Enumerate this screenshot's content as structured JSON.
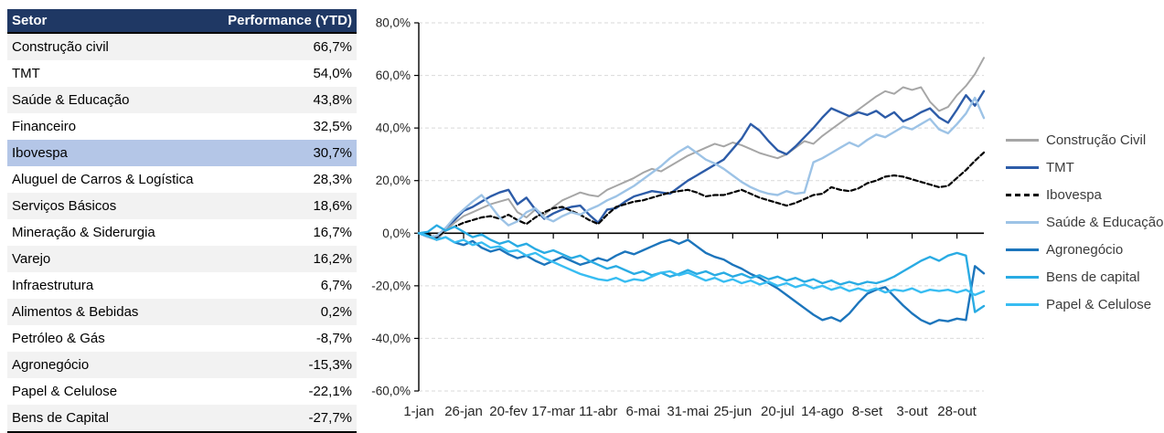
{
  "table": {
    "header_bg": "#1F3864",
    "stripe_color": "#F2F2F2",
    "highlight_color": "#B4C6E7",
    "headers": {
      "sector": "Setor",
      "performance": "Performance (YTD)"
    },
    "rows": [
      {
        "sector": "Construção civil",
        "value": "66,7%",
        "highlight": false
      },
      {
        "sector": "TMT",
        "value": "54,0%",
        "highlight": false
      },
      {
        "sector": "Saúde & Educação",
        "value": "43,8%",
        "highlight": false
      },
      {
        "sector": "Financeiro",
        "value": "32,5%",
        "highlight": false
      },
      {
        "sector": "Ibovespa",
        "value": "30,7%",
        "highlight": true
      },
      {
        "sector": "Aluguel de Carros & Logística",
        "value": "28,3%",
        "highlight": false
      },
      {
        "sector": "Serviços Básicos",
        "value": "18,6%",
        "highlight": false
      },
      {
        "sector": "Mineração & Siderurgia",
        "value": "16,7%",
        "highlight": false
      },
      {
        "sector": "Varejo",
        "value": "16,2%",
        "highlight": false
      },
      {
        "sector": "Infraestrutura",
        "value": "6,7%",
        "highlight": false
      },
      {
        "sector": "Alimentos & Bebidas",
        "value": "0,2%",
        "highlight": false
      },
      {
        "sector": "Petróleo & Gás",
        "value": "-8,7%",
        "highlight": false
      },
      {
        "sector": "Agronegócio",
        "value": "-15,3%",
        "highlight": false
      },
      {
        "sector": "Papel & Celulose",
        "value": "-22,1%",
        "highlight": false
      },
      {
        "sector": "Bens de Capital",
        "value": "-27,7%",
        "highlight": false
      }
    ]
  },
  "chart_data": {
    "type": "line",
    "title": "",
    "xlabel": "",
    "ylabel": "",
    "grid": "horizontal-dashed",
    "grid_color": "#D9D9D9",
    "axis_color": "#000000",
    "label_color": "#262626",
    "legend_position": "right",
    "ylim": [
      -60,
      80
    ],
    "y_ticks": [
      80,
      60,
      40,
      20,
      0,
      -20,
      -40,
      -60
    ],
    "y_tick_labels": [
      "80,0%",
      "60,0%",
      "40,0%",
      "20,0%",
      "0,0%",
      "-20,0%",
      "-40,0%",
      "-60,0%"
    ],
    "x_total_days": 315,
    "x_days_step": 5,
    "x_tick_days": [
      0,
      25,
      50,
      75,
      100,
      125,
      150,
      175,
      200,
      225,
      250,
      275,
      300
    ],
    "x_tick_labels": [
      "1-jan",
      "26-jan",
      "20-fev",
      "17-mar",
      "11-abr",
      "6-mai",
      "31-mai",
      "25-jun",
      "20-jul",
      "14-ago",
      "8-set",
      "3-out",
      "28-out"
    ],
    "series": [
      {
        "name": "Construção Civil",
        "color": "#A6A6A6",
        "dash": null,
        "width": 2,
        "values": [
          0,
          -1.5,
          -2.5,
          1,
          4,
          6.5,
          8,
          9.5,
          11,
          12,
          13,
          8,
          6,
          9,
          7,
          10,
          12.5,
          14,
          15.5,
          14.5,
          14,
          16.5,
          18,
          19.5,
          21,
          23,
          24.5,
          23.5,
          25.5,
          27.5,
          29.5,
          31,
          32.5,
          34,
          33,
          34.5,
          33.5,
          32,
          30.5,
          29.5,
          28.5,
          30,
          32.5,
          35,
          34,
          37,
          39.5,
          42,
          44.5,
          47,
          49.5,
          52,
          54,
          53,
          55.5,
          54.5,
          55.5,
          50,
          46.5,
          48,
          52.5,
          56,
          60.5,
          66.7
        ]
      },
      {
        "name": "TMT",
        "color": "#2D5CA8",
        "dash": null,
        "width": 2.4,
        "values": [
          0,
          -1,
          -2,
          2,
          5,
          8.5,
          10,
          12,
          14,
          15.5,
          16.5,
          11,
          13.5,
          9,
          5.5,
          7.5,
          9,
          10,
          10.5,
          7,
          4,
          9,
          9.5,
          12,
          14,
          15,
          16,
          15.5,
          15,
          17.5,
          20,
          22,
          24,
          26,
          28,
          32,
          36,
          41.5,
          39,
          35,
          31.5,
          30,
          33,
          36.5,
          40,
          44,
          47.5,
          46,
          44.5,
          46,
          45,
          46.5,
          44,
          46,
          42.5,
          44,
          46,
          47.5,
          44,
          42,
          47,
          52.5,
          48.5,
          54
        ]
      },
      {
        "name": "Ibovespa",
        "color": "#000000",
        "dash": "5 3",
        "width": 2.2,
        "values": [
          0,
          -0.5,
          -1.5,
          1,
          2.5,
          4,
          5,
          6,
          6.5,
          5.5,
          7,
          5,
          3.5,
          6,
          8,
          9.5,
          10,
          8.5,
          7,
          5,
          3.5,
          7,
          10,
          11,
          12,
          12.5,
          13.5,
          14.5,
          15.5,
          16,
          16.5,
          15.5,
          14,
          14.5,
          14.5,
          15.5,
          16.5,
          15,
          13.5,
          12.5,
          11.5,
          10.5,
          11.5,
          13,
          14.5,
          15,
          17.5,
          16.5,
          16,
          17,
          19,
          20,
          21.5,
          22,
          21.5,
          20.5,
          19.5,
          18.5,
          17.5,
          18,
          21,
          24,
          27.5,
          30.7
        ]
      },
      {
        "name": "Saúde & Educação",
        "color": "#9DC3E6",
        "dash": null,
        "width": 2.4,
        "values": [
          0,
          -1.5,
          -1,
          2,
          6,
          9,
          12,
          14.5,
          10.5,
          6,
          3,
          4.5,
          8,
          9.5,
          6,
          4.5,
          6.5,
          8,
          7,
          9,
          10.5,
          12.5,
          14,
          16,
          18,
          20.5,
          23,
          25.5,
          28.5,
          31,
          33,
          30.5,
          28,
          26.5,
          24.5,
          22,
          19.5,
          17.5,
          16,
          15,
          14.5,
          16,
          15,
          15.5,
          27,
          28.5,
          30.5,
          32.5,
          34.5,
          33,
          35.5,
          37.5,
          36.5,
          38.5,
          40.5,
          39.5,
          41.5,
          43.5,
          39.5,
          38,
          41.5,
          45.5,
          51.5,
          43.8
        ]
      },
      {
        "name": "Agronegócio",
        "color": "#1C75BC",
        "dash": null,
        "width": 2.4,
        "values": [
          0,
          -1,
          -2.5,
          -1.5,
          -3.5,
          -4.5,
          -3,
          -5.5,
          -7,
          -6,
          -8,
          -9.5,
          -8.5,
          -10.5,
          -12,
          -10.5,
          -9,
          -10.5,
          -12,
          -11,
          -9.5,
          -10.5,
          -8.5,
          -7,
          -8,
          -6.5,
          -5,
          -3.5,
          -2.5,
          -4,
          -2.5,
          -5,
          -7.5,
          -9,
          -10,
          -12,
          -13.5,
          -15.5,
          -17,
          -19,
          -21,
          -23.5,
          -26,
          -28.5,
          -31,
          -33,
          -32,
          -33.5,
          -30.5,
          -26.5,
          -23,
          -21.5,
          -20.5,
          -24,
          -27.5,
          -30.5,
          -33,
          -34.5,
          -33,
          -33.5,
          -32.5,
          -33,
          -12.5,
          -15.3
        ]
      },
      {
        "name": "Bens de capital",
        "color": "#29ABE3",
        "dash": null,
        "width": 2.4,
        "values": [
          0,
          0.5,
          3,
          1,
          2.5,
          0.5,
          -1.5,
          -0.5,
          -2.5,
          -4,
          -3,
          -5,
          -4,
          -6,
          -7.5,
          -6.5,
          -8,
          -9.5,
          -8.5,
          -10.5,
          -12,
          -13.5,
          -12.5,
          -14,
          -15.5,
          -14.5,
          -16,
          -15,
          -16.5,
          -15.5,
          -14,
          -15.5,
          -14.5,
          -16,
          -15,
          -16.5,
          -15.5,
          -17,
          -16,
          -17.5,
          -16.5,
          -18,
          -17,
          -18.5,
          -17.5,
          -19,
          -18,
          -19.5,
          -18.5,
          -19.5,
          -18.5,
          -19,
          -18,
          -16.5,
          -14.5,
          -12.5,
          -10.5,
          -9,
          -10.5,
          -8.5,
          -7.5,
          -8.5,
          -30,
          -27.7
        ]
      },
      {
        "name": "Papel & Celulose",
        "color": "#38BDF2",
        "dash": null,
        "width": 2.4,
        "values": [
          0,
          -1,
          -2.5,
          -1.5,
          -3.5,
          -2.5,
          -4.5,
          -3.5,
          -5.5,
          -5,
          -7,
          -6.5,
          -8.5,
          -7.5,
          -9.5,
          -11,
          -12.5,
          -14,
          -15.5,
          -16.5,
          -17.5,
          -18,
          -17,
          -18.5,
          -17.5,
          -18,
          -16.5,
          -15,
          -14.5,
          -16,
          -15,
          -16.5,
          -18,
          -17,
          -18.5,
          -17.5,
          -19,
          -18,
          -19.5,
          -18.5,
          -20,
          -19,
          -20.5,
          -19.5,
          -21,
          -20,
          -21.5,
          -20.5,
          -22,
          -21,
          -22,
          -21,
          -22.5,
          -21.5,
          -22,
          -21,
          -22.5,
          -21.5,
          -22,
          -21.5,
          -22.5,
          -21.5,
          -23.5,
          -22.1
        ]
      }
    ]
  }
}
